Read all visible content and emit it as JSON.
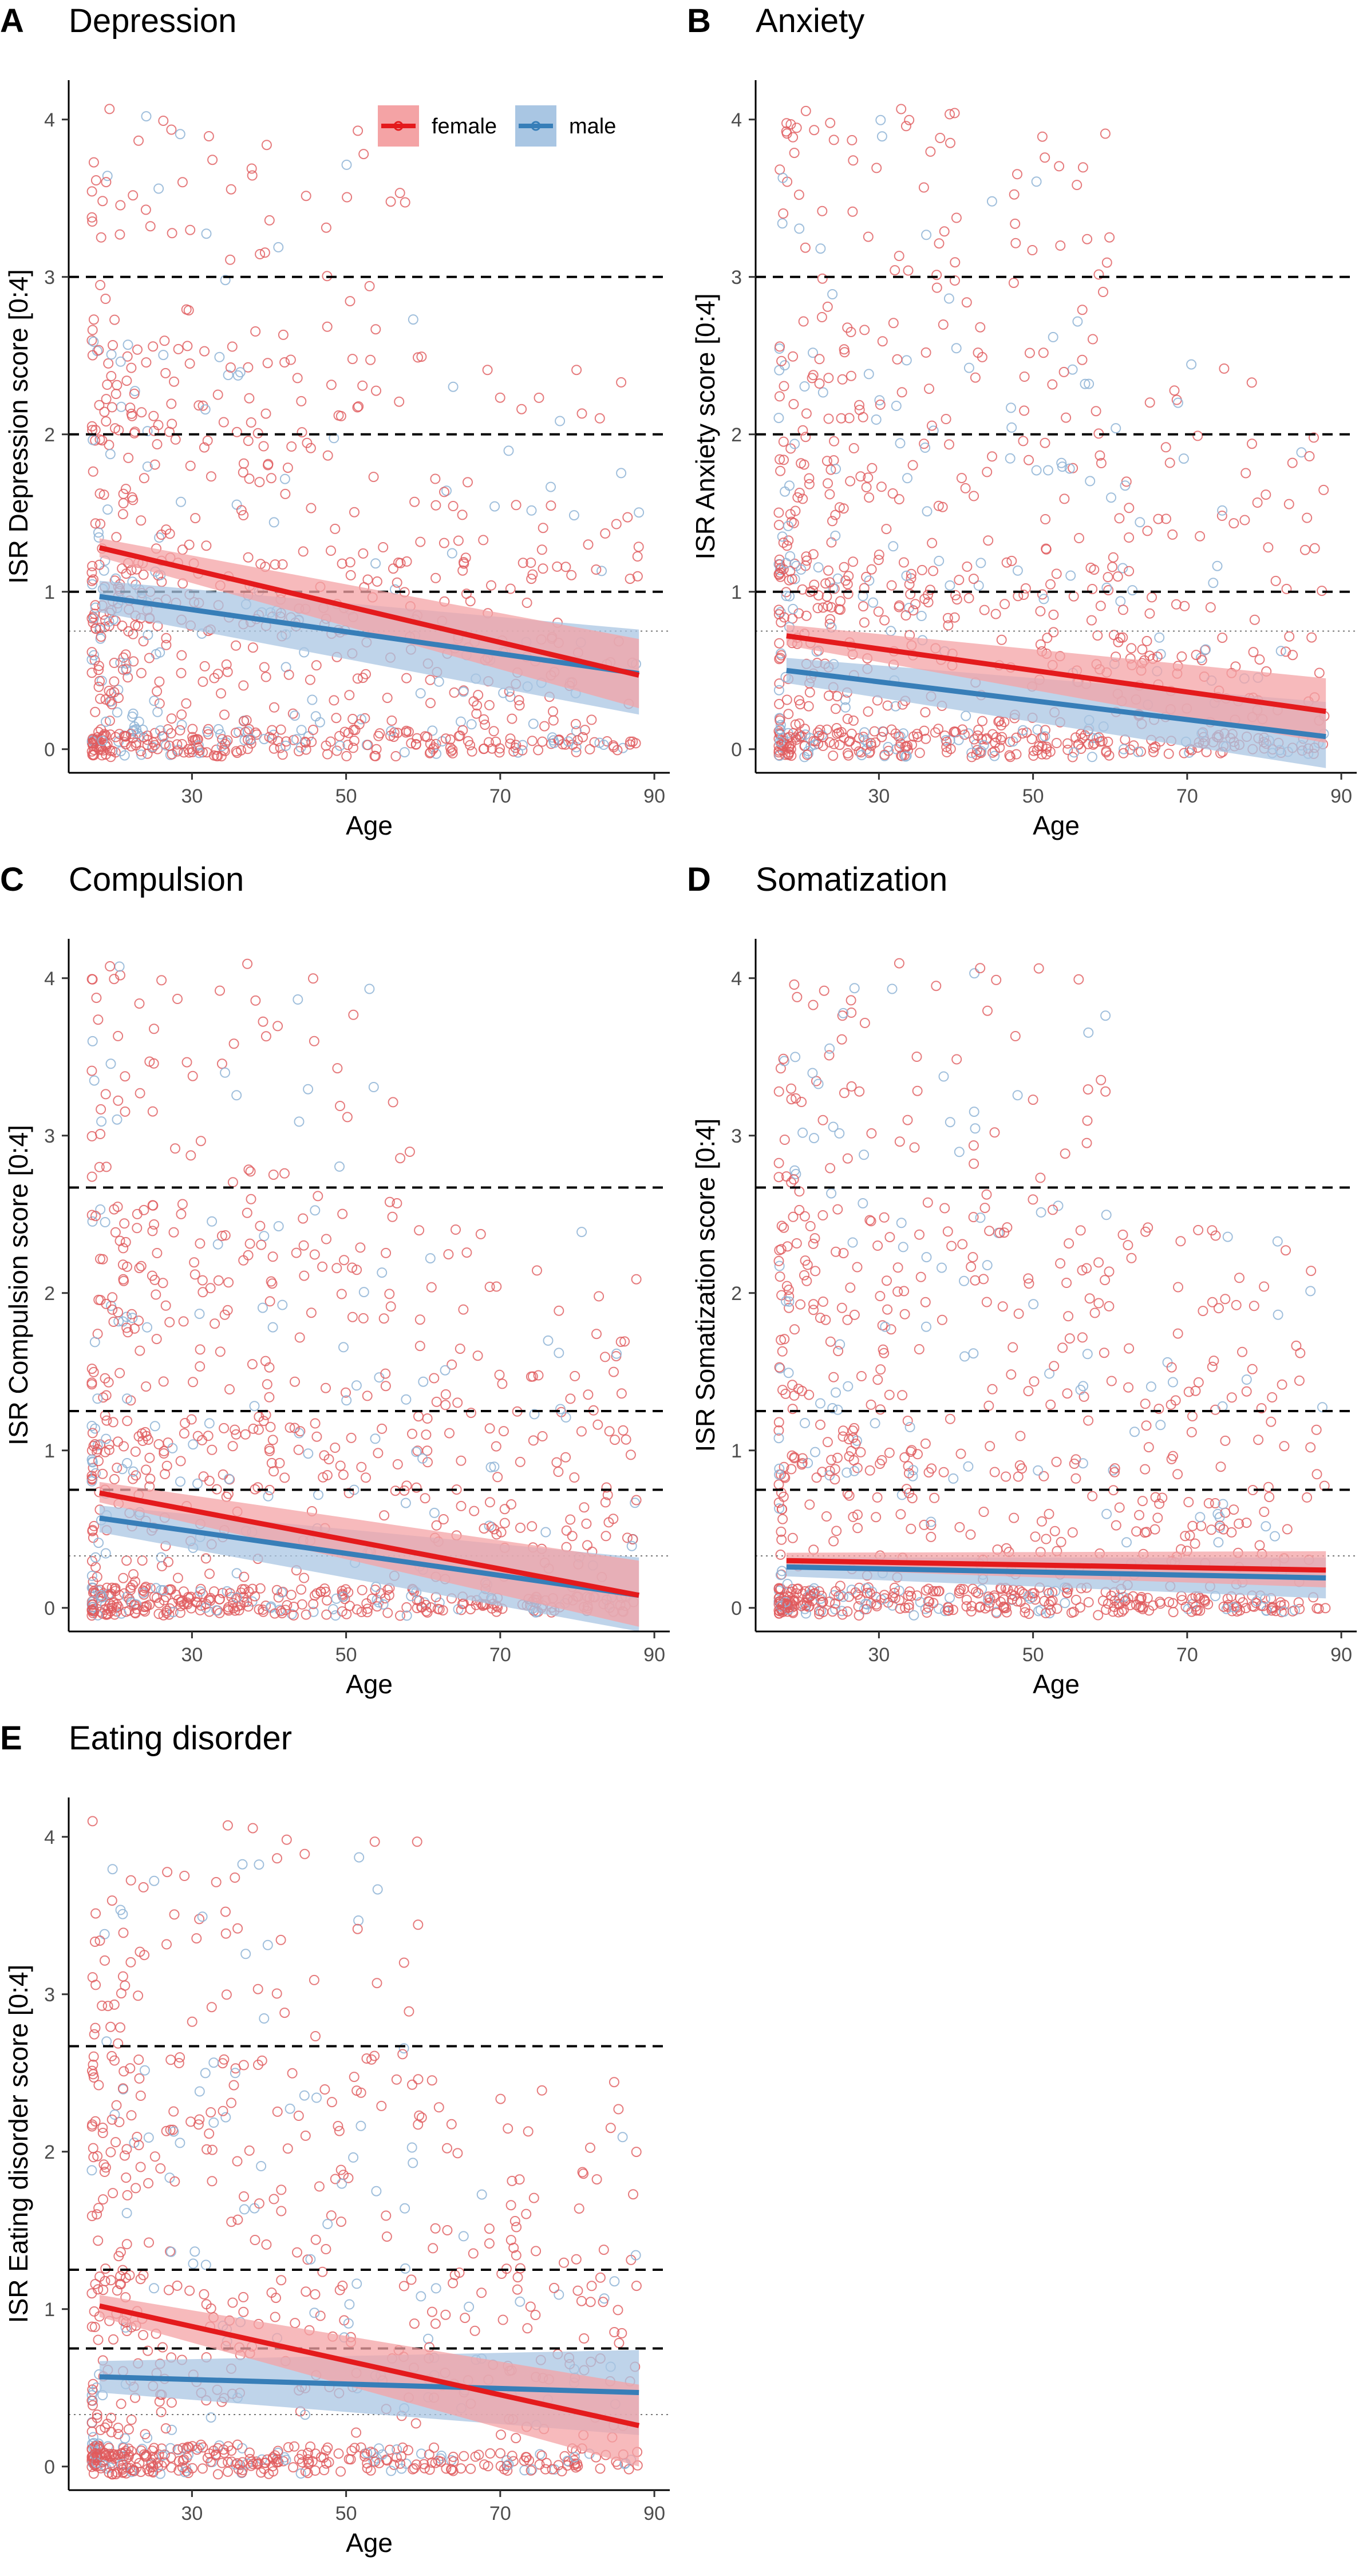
{
  "legend": {
    "items": [
      {
        "label": "female",
        "color": "#e41a1c",
        "fill": "#f4a3a5"
      },
      {
        "label": "male",
        "color": "#377eb8",
        "fill": "#a9c6e3"
      }
    ]
  },
  "chart_data": [
    {
      "type": "scatter",
      "letter": "A",
      "title": "Depression",
      "xlabel": "Age",
      "ylabel": "ISR Depression score [0:4]",
      "xlim": [
        14,
        92
      ],
      "ylim": [
        -0.15,
        4.25
      ],
      "xticks": [
        30,
        50,
        70,
        90
      ],
      "yticks": [
        0,
        1,
        2,
        3,
        4
      ],
      "xrange_points": [
        17,
        88
      ],
      "thresholds": [
        1,
        2,
        3
      ],
      "dotted_line": 0.75,
      "show_legend": true,
      "series": [
        {
          "name": "female",
          "x": [
            18,
            88
          ],
          "y": [
            1.28,
            0.47
          ],
          "ci_lower": [
            1.22,
            0.26
          ],
          "ci_upper": [
            1.34,
            0.7
          ],
          "density": 1.0
        },
        {
          "name": "male",
          "x": [
            18,
            88
          ],
          "y": [
            0.97,
            0.48
          ],
          "ci_lower": [
            0.87,
            0.22
          ],
          "ci_upper": [
            1.07,
            0.76
          ],
          "density": 0.22
        }
      ]
    },
    {
      "type": "scatter",
      "letter": "B",
      "title": "Anxiety",
      "xlabel": "Age",
      "ylabel": "ISR Anxiety score [0:4]",
      "xlim": [
        14,
        92
      ],
      "ylim": [
        -0.15,
        4.25
      ],
      "xticks": [
        30,
        50,
        70,
        90
      ],
      "yticks": [
        0,
        1,
        2,
        3,
        4
      ],
      "xrange_points": [
        17,
        88
      ],
      "thresholds": [
        1,
        2,
        3
      ],
      "dotted_line": 0.75,
      "show_legend": false,
      "series": [
        {
          "name": "female",
          "x": [
            18,
            88
          ],
          "y": [
            0.72,
            0.24
          ],
          "ci_lower": [
            0.66,
            0.04
          ],
          "ci_upper": [
            0.79,
            0.45
          ],
          "density": 1.0
        },
        {
          "name": "male",
          "x": [
            18,
            88
          ],
          "y": [
            0.5,
            0.08
          ],
          "ci_lower": [
            0.42,
            -0.12
          ],
          "ci_upper": [
            0.58,
            0.3
          ],
          "density": 0.22
        }
      ]
    },
    {
      "type": "scatter",
      "letter": "C",
      "title": "Compulsion",
      "xlabel": "Age",
      "ylabel": "ISR Compulsion score [0:4]",
      "xlim": [
        14,
        92
      ],
      "ylim": [
        -0.15,
        4.25
      ],
      "xticks": [
        30,
        50,
        70,
        90
      ],
      "yticks": [
        0,
        1,
        2,
        3,
        4
      ],
      "xrange_points": [
        17,
        88
      ],
      "thresholds": [
        0.75,
        1.25,
        2.67
      ],
      "dotted_line": 0.33,
      "show_legend": false,
      "series": [
        {
          "name": "female",
          "x": [
            18,
            88
          ],
          "y": [
            0.73,
            0.08
          ],
          "ci_lower": [
            0.67,
            -0.12
          ],
          "ci_upper": [
            0.8,
            0.3
          ],
          "density": 1.0
        },
        {
          "name": "male",
          "x": [
            18,
            88
          ],
          "y": [
            0.57,
            0.08
          ],
          "ci_lower": [
            0.48,
            -0.15
          ],
          "ci_upper": [
            0.65,
            0.32
          ],
          "density": 0.22
        }
      ]
    },
    {
      "type": "scatter",
      "letter": "D",
      "title": "Somatization",
      "xlabel": "Age",
      "ylabel": "ISR Somatization score [0:4]",
      "xlim": [
        14,
        92
      ],
      "ylim": [
        -0.15,
        4.25
      ],
      "xticks": [
        30,
        50,
        70,
        90
      ],
      "yticks": [
        0,
        1,
        2,
        3,
        4
      ],
      "xrange_points": [
        17,
        88
      ],
      "thresholds": [
        0.75,
        1.25,
        2.67
      ],
      "dotted_line": 0.33,
      "show_legend": false,
      "series": [
        {
          "name": "female",
          "x": [
            18,
            88
          ],
          "y": [
            0.3,
            0.24
          ],
          "ci_lower": [
            0.25,
            0.13
          ],
          "ci_upper": [
            0.35,
            0.36
          ],
          "density": 1.0
        },
        {
          "name": "male",
          "x": [
            18,
            88
          ],
          "y": [
            0.26,
            0.19
          ],
          "ci_lower": [
            0.2,
            0.06
          ],
          "ci_upper": [
            0.32,
            0.32
          ],
          "density": 0.22
        }
      ]
    },
    {
      "type": "scatter",
      "letter": "E",
      "title": "Eating disorder",
      "xlabel": "Age",
      "ylabel": "ISR Eating disorder score [0:4]",
      "xlim": [
        14,
        92
      ],
      "ylim": [
        -0.15,
        4.25
      ],
      "xticks": [
        30,
        50,
        70,
        90
      ],
      "yticks": [
        0,
        1,
        2,
        3,
        4
      ],
      "xrange_points": [
        17,
        88
      ],
      "thresholds": [
        0.75,
        1.25,
        2.67
      ],
      "dotted_line": 0.33,
      "show_legend": false,
      "series": [
        {
          "name": "female",
          "x": [
            18,
            88
          ],
          "y": [
            1.02,
            0.26
          ],
          "ci_lower": [
            0.95,
            0.0
          ],
          "ci_upper": [
            1.09,
            0.52
          ],
          "density": 1.0
        },
        {
          "name": "male",
          "x": [
            18,
            88
          ],
          "y": [
            0.57,
            0.47
          ],
          "ci_lower": [
            0.47,
            0.2
          ],
          "ci_upper": [
            0.67,
            0.74
          ],
          "density": 0.22
        }
      ]
    }
  ]
}
